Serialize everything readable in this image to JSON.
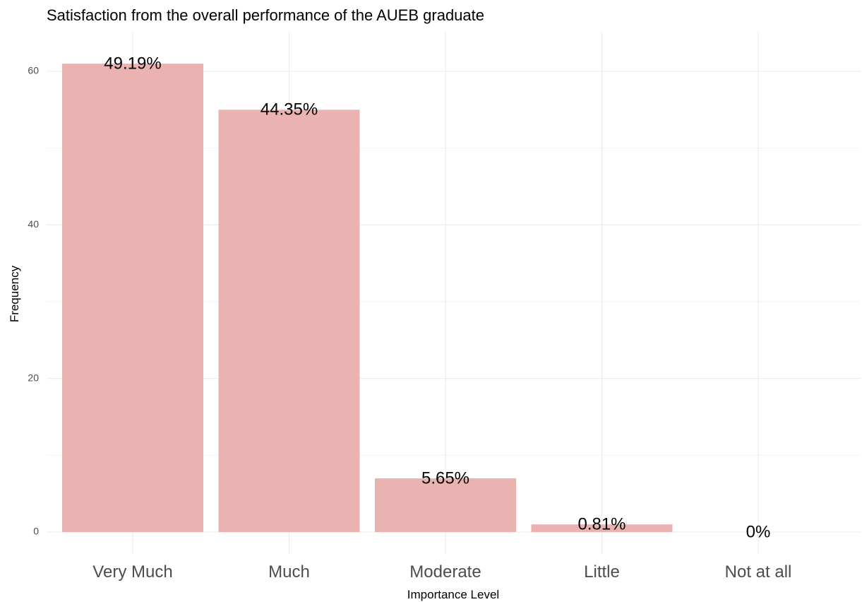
{
  "chart_data": {
    "type": "bar",
    "title": "Satisfaction from the overall performance of the AUEB graduate",
    "xlabel": "Importance Level",
    "ylabel": "Frequency",
    "categories": [
      "Very Much",
      "Much",
      "Moderate",
      "Little",
      "Not at all"
    ],
    "values": [
      61,
      55,
      7,
      1,
      0
    ],
    "data_labels": [
      "49.19%",
      "44.35%",
      "5.65%",
      "0.81%",
      "0%"
    ],
    "ylim": [
      0,
      65
    ],
    "y_ticks": [
      0,
      20,
      40,
      60
    ],
    "grid": true,
    "bar_color": "#ebb2b2",
    "background": "#ffffff"
  }
}
